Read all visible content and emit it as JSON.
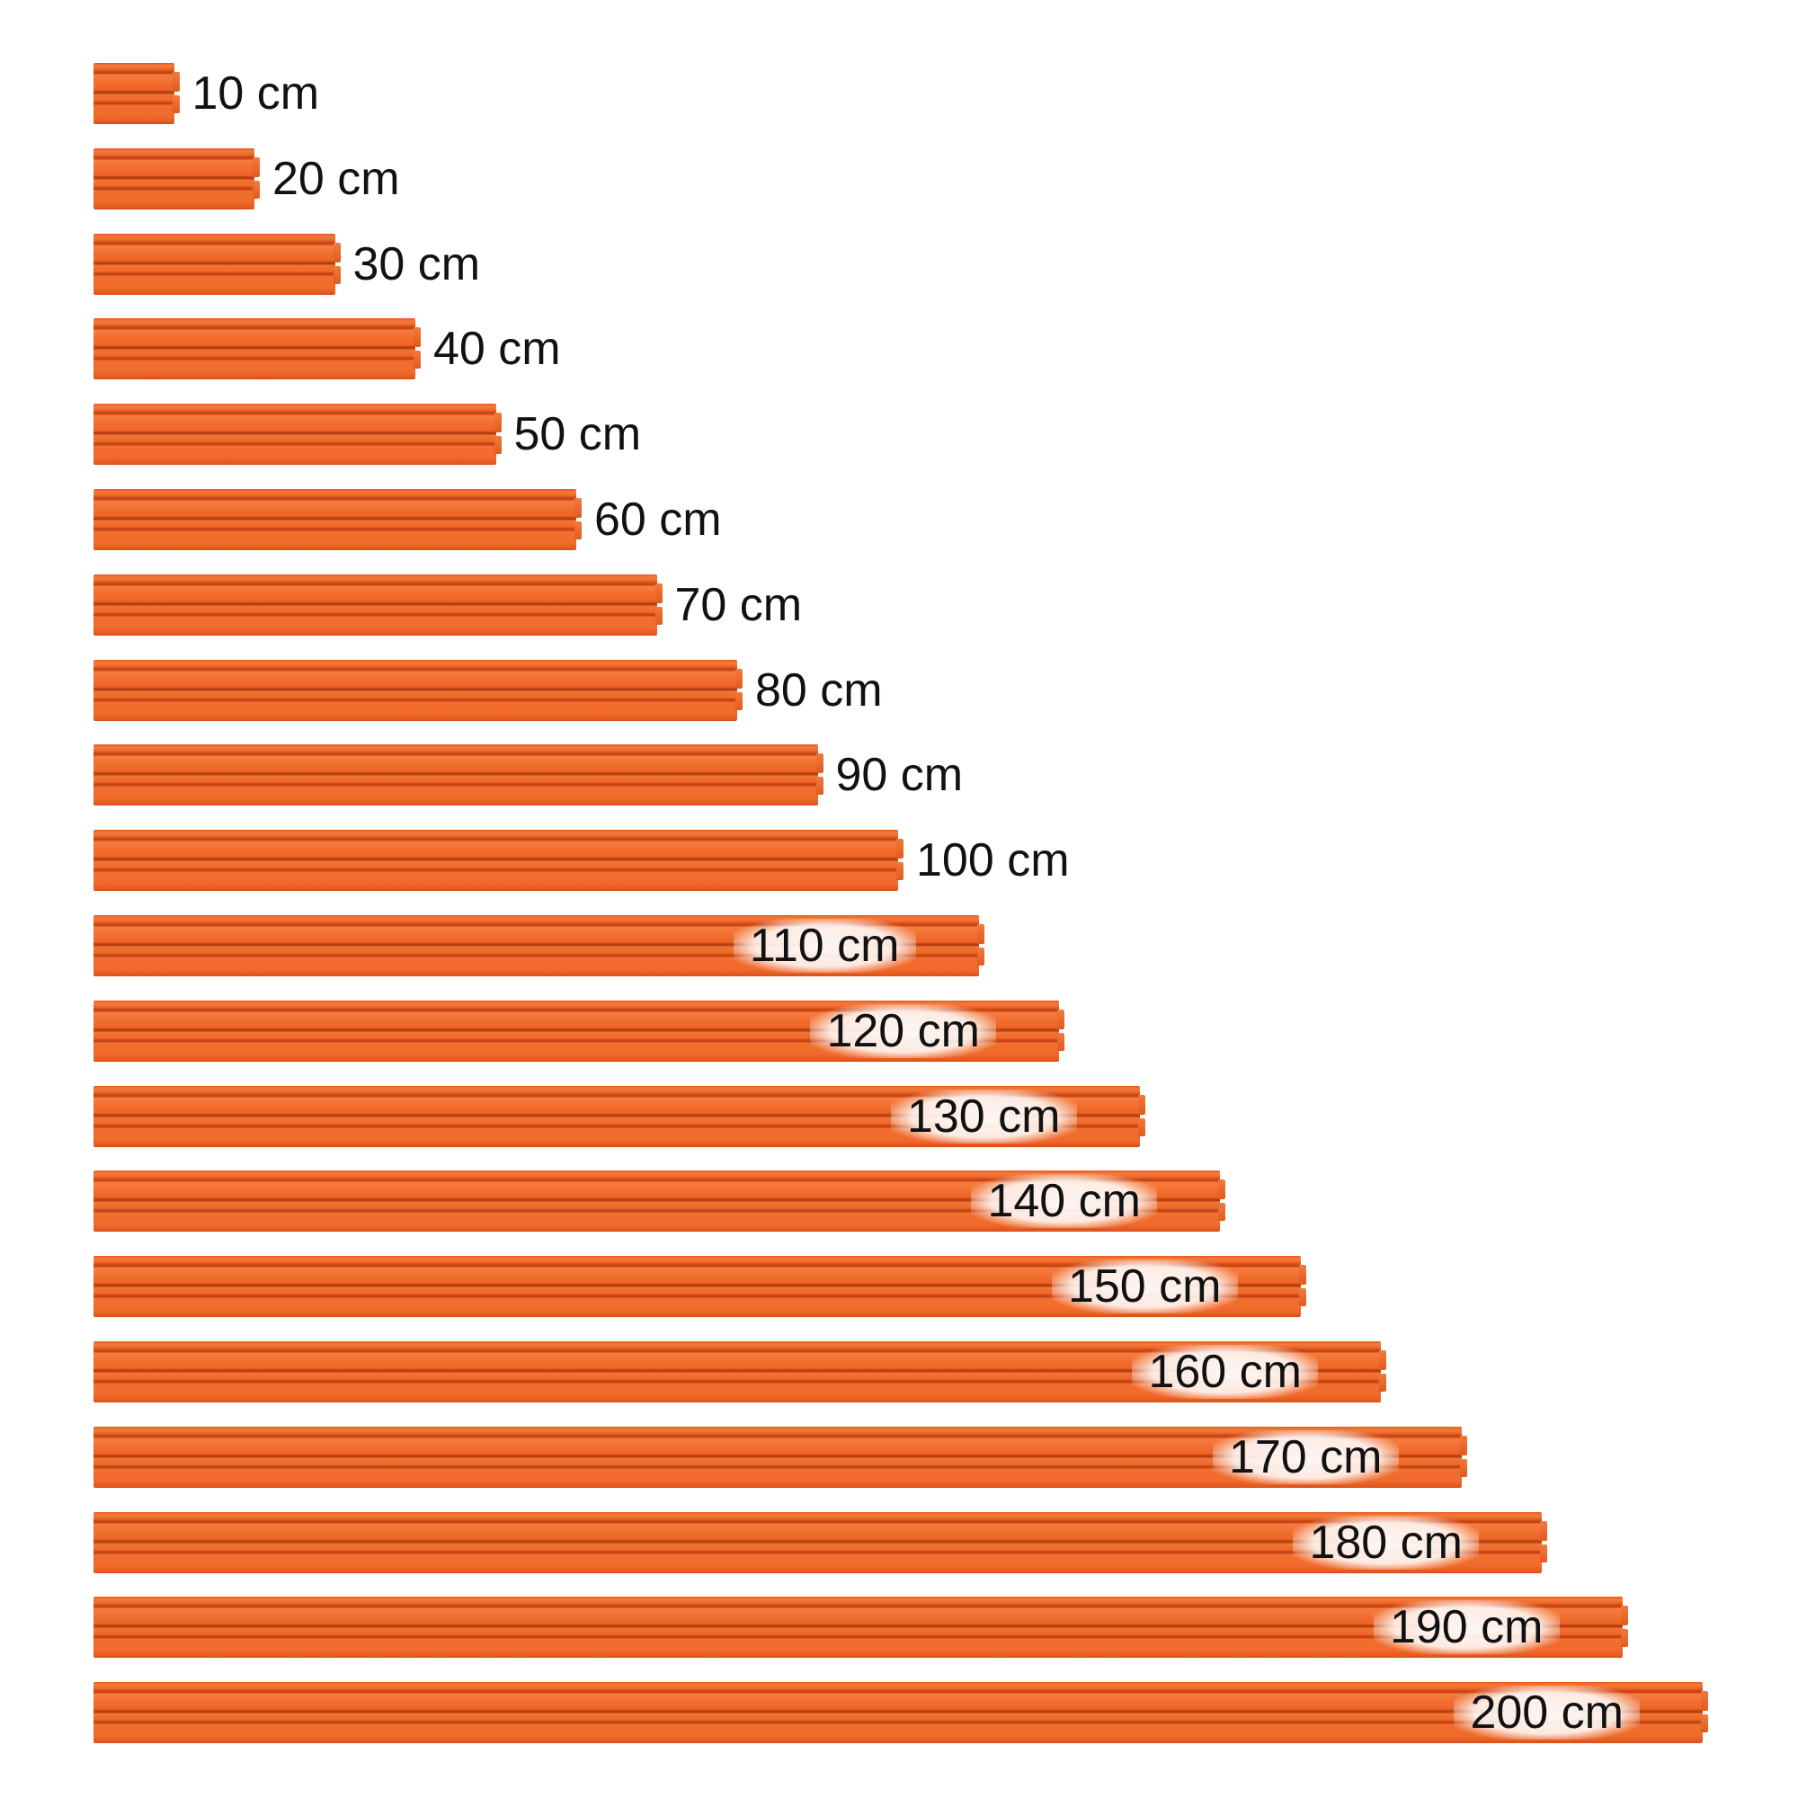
{
  "colors": {
    "rail": "#f06a2b",
    "label": "#111111",
    "background": "#ffffff"
  },
  "rails": [
    {
      "length": 10,
      "label": "10 cm"
    },
    {
      "length": 20,
      "label": "20 cm"
    },
    {
      "length": 30,
      "label": "30 cm"
    },
    {
      "length": 40,
      "label": "40 cm"
    },
    {
      "length": 50,
      "label": "50 cm"
    },
    {
      "length": 60,
      "label": "60 cm"
    },
    {
      "length": 70,
      "label": "70 cm"
    },
    {
      "length": 80,
      "label": "80 cm"
    },
    {
      "length": 90,
      "label": "90 cm"
    },
    {
      "length": 100,
      "label": "100 cm"
    },
    {
      "length": 110,
      "label": "110 cm"
    },
    {
      "length": 120,
      "label": "120 cm"
    },
    {
      "length": 130,
      "label": "130 cm"
    },
    {
      "length": 140,
      "label": "140 cm"
    },
    {
      "length": 150,
      "label": "150 cm"
    },
    {
      "length": 160,
      "label": "160 cm"
    },
    {
      "length": 170,
      "label": "170 cm"
    },
    {
      "length": 180,
      "label": "180 cm"
    },
    {
      "length": 190,
      "label": "190 cm"
    },
    {
      "length": 200,
      "label": "200 cm"
    }
  ]
}
